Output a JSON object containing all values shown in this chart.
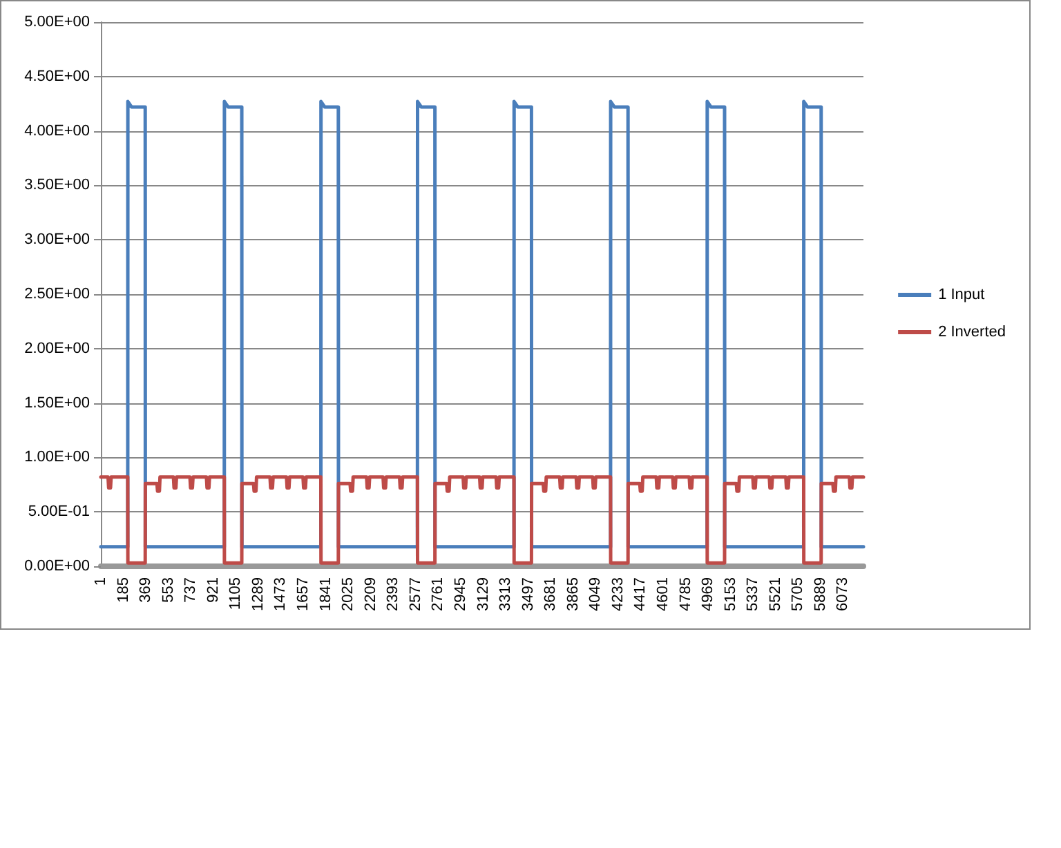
{
  "chart_data": {
    "type": "line",
    "x": [
      1,
      60,
      65,
      80,
      85,
      221,
      222,
      252,
      364,
      365,
      460,
      465,
      480,
      485,
      595,
      600,
      615,
      620,
      730,
      735,
      750,
      755,
      865,
      870,
      885,
      890,
      1011,
      1012,
      1042,
      1154,
      1155,
      1250,
      1255,
      1270,
      1275,
      1385,
      1390,
      1405,
      1410,
      1520,
      1525,
      1540,
      1545,
      1655,
      1660,
      1675,
      1680,
      1801,
      1802,
      1832,
      1944,
      1945,
      2040,
      2045,
      2060,
      2065,
      2175,
      2180,
      2195,
      2200,
      2310,
      2315,
      2330,
      2335,
      2445,
      2450,
      2465,
      2470,
      2591,
      2592,
      2622,
      2734,
      2735,
      2830,
      2835,
      2850,
      2855,
      2965,
      2970,
      2985,
      2990,
      3100,
      3105,
      3120,
      3125,
      3235,
      3240,
      3255,
      3260,
      3381,
      3382,
      3412,
      3524,
      3525,
      3620,
      3625,
      3640,
      3645,
      3755,
      3760,
      3775,
      3780,
      3890,
      3895,
      3910,
      3915,
      4025,
      4030,
      4045,
      4050,
      4171,
      4172,
      4202,
      4314,
      4315,
      4410,
      4415,
      4430,
      4435,
      4545,
      4550,
      4565,
      4570,
      4680,
      4685,
      4700,
      4705,
      4815,
      4820,
      4835,
      4840,
      4961,
      4962,
      4992,
      5104,
      5105,
      5200,
      5205,
      5220,
      5225,
      5335,
      5340,
      5355,
      5360,
      5470,
      5475,
      5490,
      5495,
      5605,
      5610,
      5625,
      5630,
      5751,
      5752,
      5782,
      5894,
      5895,
      5990,
      5995,
      6010,
      6015,
      6125,
      6130,
      6145,
      6150,
      6240
    ],
    "series": [
      {
        "name": "1 Input",
        "color": "#4a7ebb",
        "values": [
          0.18,
          0.18,
          0.18,
          0.18,
          0.18,
          0.18,
          4.27,
          4.22,
          4.22,
          0.18,
          0.18,
          0.18,
          0.18,
          0.18,
          0.18,
          0.18,
          0.18,
          0.18,
          0.18,
          0.18,
          0.18,
          0.18,
          0.18,
          0.18,
          0.18,
          0.18,
          0.18,
          4.27,
          4.22,
          4.22,
          0.18,
          0.18,
          0.18,
          0.18,
          0.18,
          0.18,
          0.18,
          0.18,
          0.18,
          0.18,
          0.18,
          0.18,
          0.18,
          0.18,
          0.18,
          0.18,
          0.18,
          0.18,
          4.27,
          4.22,
          4.22,
          0.18,
          0.18,
          0.18,
          0.18,
          0.18,
          0.18,
          0.18,
          0.18,
          0.18,
          0.18,
          0.18,
          0.18,
          0.18,
          0.18,
          0.18,
          0.18,
          0.18,
          0.18,
          4.27,
          4.22,
          4.22,
          0.18,
          0.18,
          0.18,
          0.18,
          0.18,
          0.18,
          0.18,
          0.18,
          0.18,
          0.18,
          0.18,
          0.18,
          0.18,
          0.18,
          0.18,
          0.18,
          0.18,
          0.18,
          4.27,
          4.22,
          4.22,
          0.18,
          0.18,
          0.18,
          0.18,
          0.18,
          0.18,
          0.18,
          0.18,
          0.18,
          0.18,
          0.18,
          0.18,
          0.18,
          0.18,
          0.18,
          0.18,
          0.18,
          0.18,
          4.27,
          4.22,
          4.22,
          0.18,
          0.18,
          0.18,
          0.18,
          0.18,
          0.18,
          0.18,
          0.18,
          0.18,
          0.18,
          0.18,
          0.18,
          0.18,
          0.18,
          0.18,
          0.18,
          0.18,
          0.18,
          4.27,
          4.22,
          4.22,
          0.18,
          0.18,
          0.18,
          0.18,
          0.18,
          0.18,
          0.18,
          0.18,
          0.18,
          0.18,
          0.18,
          0.18,
          0.18,
          0.18,
          0.18,
          0.18,
          0.18,
          0.18,
          4.27,
          4.22,
          4.22,
          0.18,
          0.18,
          0.18,
          0.18,
          0.18,
          0.18,
          0.18,
          0.18,
          0.18,
          0.18
        ]
      },
      {
        "name": "2 Inverted",
        "color": "#be4b48",
        "values": [
          0.82,
          0.82,
          0.72,
          0.72,
          0.82,
          0.82,
          0.03,
          0.03,
          0.03,
          0.76,
          0.76,
          0.69,
          0.69,
          0.82,
          0.82,
          0.72,
          0.72,
          0.82,
          0.82,
          0.72,
          0.72,
          0.82,
          0.82,
          0.72,
          0.72,
          0.82,
          0.82,
          0.03,
          0.03,
          0.03,
          0.76,
          0.76,
          0.69,
          0.69,
          0.82,
          0.82,
          0.72,
          0.72,
          0.82,
          0.82,
          0.72,
          0.72,
          0.82,
          0.82,
          0.72,
          0.72,
          0.82,
          0.82,
          0.03,
          0.03,
          0.03,
          0.76,
          0.76,
          0.69,
          0.69,
          0.82,
          0.82,
          0.72,
          0.72,
          0.82,
          0.82,
          0.72,
          0.72,
          0.82,
          0.82,
          0.72,
          0.72,
          0.82,
          0.82,
          0.03,
          0.03,
          0.03,
          0.76,
          0.76,
          0.69,
          0.69,
          0.82,
          0.82,
          0.72,
          0.72,
          0.82,
          0.82,
          0.72,
          0.72,
          0.82,
          0.82,
          0.72,
          0.72,
          0.82,
          0.82,
          0.03,
          0.03,
          0.03,
          0.76,
          0.76,
          0.69,
          0.69,
          0.82,
          0.82,
          0.72,
          0.72,
          0.82,
          0.82,
          0.72,
          0.72,
          0.82,
          0.82,
          0.72,
          0.72,
          0.82,
          0.82,
          0.03,
          0.03,
          0.03,
          0.76,
          0.76,
          0.69,
          0.69,
          0.82,
          0.82,
          0.72,
          0.72,
          0.82,
          0.82,
          0.72,
          0.72,
          0.82,
          0.82,
          0.72,
          0.72,
          0.82,
          0.82,
          0.03,
          0.03,
          0.03,
          0.76,
          0.76,
          0.69,
          0.69,
          0.82,
          0.82,
          0.72,
          0.72,
          0.82,
          0.82,
          0.72,
          0.72,
          0.82,
          0.82,
          0.72,
          0.72,
          0.82,
          0.82,
          0.03,
          0.03,
          0.03,
          0.76,
          0.76,
          0.69,
          0.69,
          0.82,
          0.82,
          0.72,
          0.72,
          0.82,
          0.82
        ]
      }
    ],
    "xlim": [
      1,
      6240
    ],
    "xticks": [
      1,
      185,
      369,
      553,
      737,
      921,
      1105,
      1289,
      1473,
      1657,
      1841,
      2025,
      2209,
      2393,
      2577,
      2761,
      2945,
      3129,
      3313,
      3497,
      3681,
      3865,
      4049,
      4233,
      4417,
      4601,
      4785,
      4969,
      5153,
      5337,
      5521,
      5705,
      5889,
      6073
    ],
    "ylim": [
      0,
      5
    ],
    "yticks": [
      {
        "value": 0,
        "label": "0.00E+00"
      },
      {
        "value": 0.5,
        "label": "5.00E-01"
      },
      {
        "value": 1,
        "label": "1.00E+00"
      },
      {
        "value": 1.5,
        "label": "1.50E+00"
      },
      {
        "value": 2,
        "label": "2.00E+00"
      },
      {
        "value": 2.5,
        "label": "2.50E+00"
      },
      {
        "value": 3,
        "label": "3.00E+00"
      },
      {
        "value": 3.5,
        "label": "3.50E+00"
      },
      {
        "value": 4,
        "label": "4.00E+00"
      },
      {
        "value": 4.5,
        "label": "4.50E+00"
      },
      {
        "value": 5,
        "label": "5.00E+00"
      }
    ],
    "grid": "y",
    "legend": "right",
    "marker": "none",
    "line_style": "solid"
  }
}
